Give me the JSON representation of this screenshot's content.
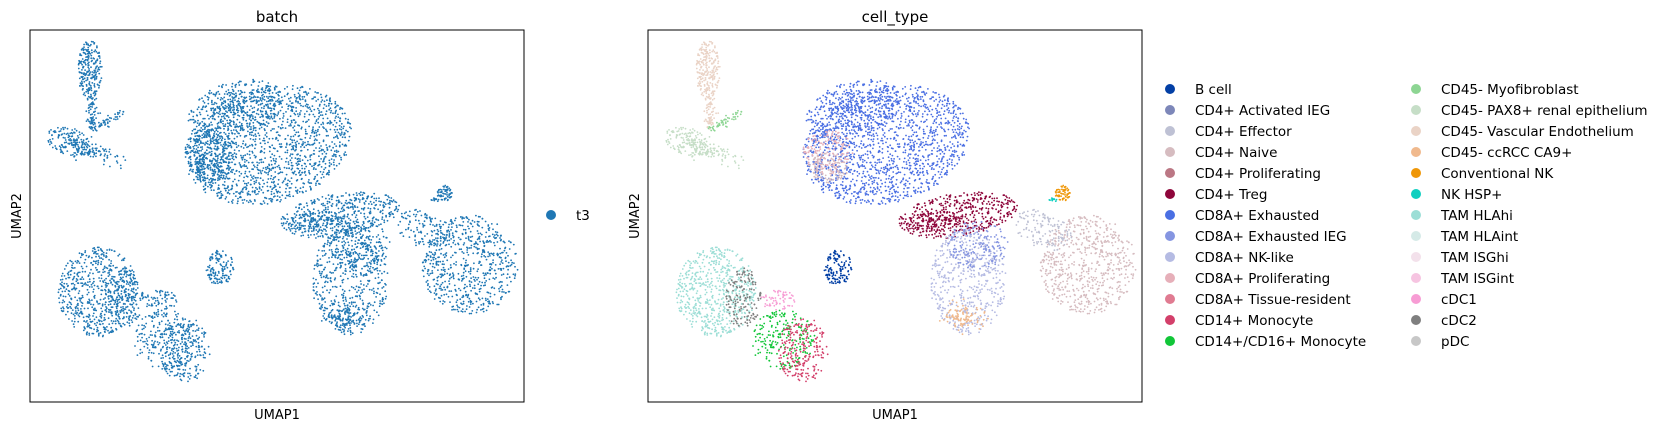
{
  "chart_data": [
    {
      "type": "scatter",
      "title": "batch",
      "xlabel": "UMAP1",
      "ylabel": "UMAP2",
      "grid": false,
      "ticks": "none",
      "legend": {
        "placement": "right",
        "columns": 1
      },
      "categories": [
        {
          "label": "t3",
          "color": "#1f77b4"
        }
      ]
    },
    {
      "type": "scatter",
      "title": "cell_type",
      "xlabel": "UMAP1",
      "ylabel": "UMAP2",
      "grid": false,
      "ticks": "none",
      "legend": {
        "placement": "right",
        "columns": 2
      },
      "categories": [
        {
          "label": "B cell",
          "color": "#023fa5"
        },
        {
          "label": "CD4+ Activated IEG",
          "color": "#7d87b9"
        },
        {
          "label": "CD4+ Effector",
          "color": "#bec1d4"
        },
        {
          "label": "CD4+ Naive",
          "color": "#d6bcc0"
        },
        {
          "label": "CD4+ Proliferating",
          "color": "#bb7784"
        },
        {
          "label": "CD4+ Treg",
          "color": "#8e063b"
        },
        {
          "label": "CD8A+ Exhausted",
          "color": "#4a6fe3"
        },
        {
          "label": "CD8A+ Exhausted IEG",
          "color": "#8595e1"
        },
        {
          "label": "CD8A+ NK-like",
          "color": "#b5bbe3"
        },
        {
          "label": "CD8A+ Proliferating",
          "color": "#e6afb9"
        },
        {
          "label": "CD8A+ Tissue-resident",
          "color": "#e07b91"
        },
        {
          "label": "CD14+ Monocyte",
          "color": "#d33f6a"
        },
        {
          "label": "CD14+/CD16+ Monocyte",
          "color": "#11c638"
        },
        {
          "label": "CD45- Myofibroblast",
          "color": "#8dd593"
        },
        {
          "label": "CD45- PAX8+ renal epithelium",
          "color": "#c6dec7"
        },
        {
          "label": "CD45- Vascular Endothelium",
          "color": "#ead3c6"
        },
        {
          "label": "CD45- ccRCC CA9+",
          "color": "#f0b98d"
        },
        {
          "label": "Conventional NK",
          "color": "#ef9708"
        },
        {
          "label": "NK HSP+",
          "color": "#0fcfc0"
        },
        {
          "label": "TAM HLAhi",
          "color": "#9cded6"
        },
        {
          "label": "TAM HLAint",
          "color": "#d5eae7"
        },
        {
          "label": "TAM ISGhi",
          "color": "#f3e1eb"
        },
        {
          "label": "TAM ISGint",
          "color": "#f6c4e1"
        },
        {
          "label": "cDC1",
          "color": "#f79cd4"
        },
        {
          "label": "cDC2",
          "color": "#7f7f7f"
        },
        {
          "label": "pDC",
          "color": "#c7c7c7"
        }
      ]
    }
  ]
}
